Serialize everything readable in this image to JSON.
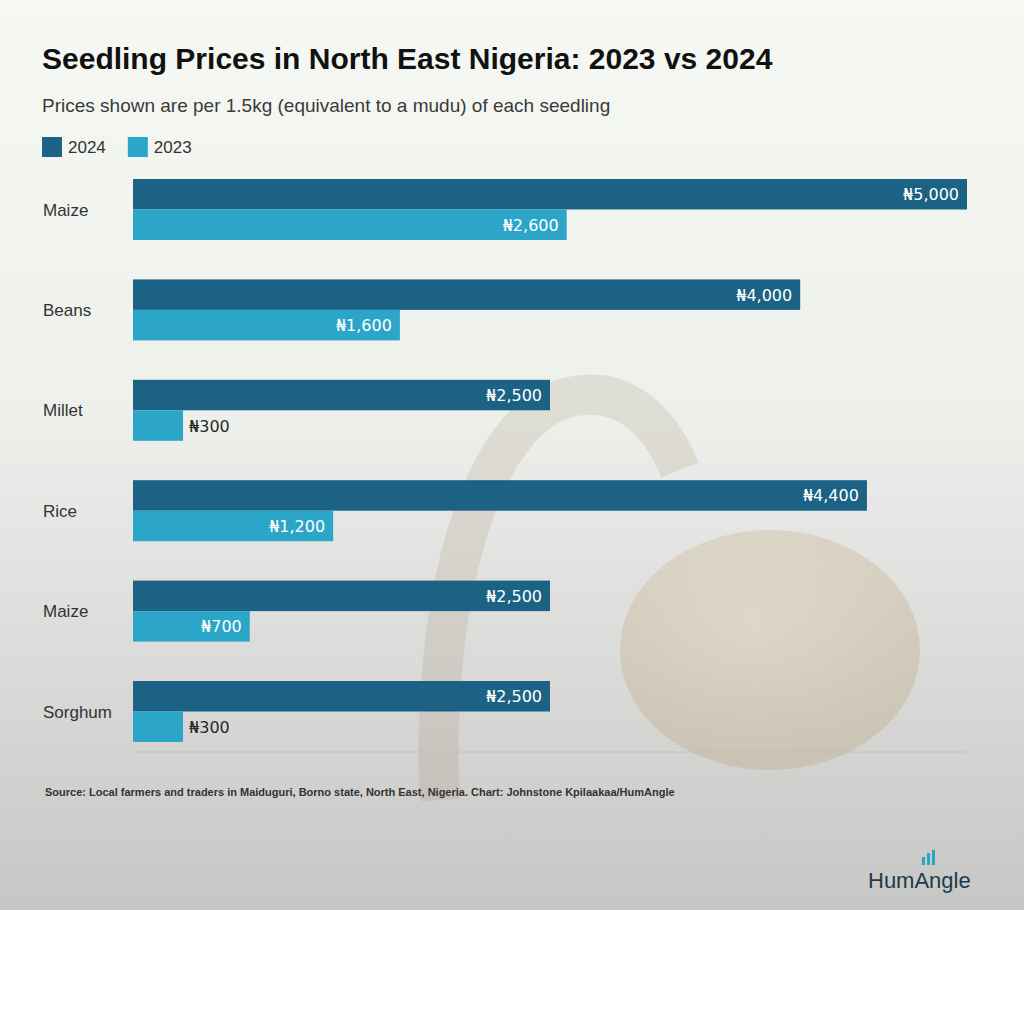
{
  "chart_data": {
    "type": "bar",
    "orientation": "horizontal",
    "title": "Seedling Prices in North East Nigeria: 2023 vs 2024",
    "subtitle": "Prices shown are per 1.5kg (equivalent to a mudu) of each seedling",
    "categories": [
      "Maize",
      "Beans",
      "Millet",
      "Rice",
      "Maize",
      "Sorghum"
    ],
    "series": [
      {
        "name": "2024",
        "color": "#1b6284",
        "values": [
          5000,
          4000,
          2500,
          4400,
          2500,
          2500
        ],
        "value_labels": [
          "₦5,000",
          "₦4,000",
          "₦2,500",
          "₦4,400",
          "₦2,500",
          "₦2,500"
        ]
      },
      {
        "name": "2023",
        "color": "#2ba6c8",
        "values": [
          2600,
          1600,
          300,
          1200,
          700,
          300
        ],
        "value_labels": [
          "₦2,600",
          "₦1,600",
          "₦300",
          "₦1,200",
          "₦700",
          "₦300"
        ]
      }
    ],
    "xlim": [
      0,
      5000
    ],
    "grid": false,
    "legend": "top-left",
    "data_labels": true,
    "tick_labels": "y",
    "source": "Source: Local farmers and traders in Maiduguri, Borno state, North East, Nigeria.  Chart: Johnstone Kpilaakaa/HumAngle",
    "brand": "HumAngle"
  }
}
